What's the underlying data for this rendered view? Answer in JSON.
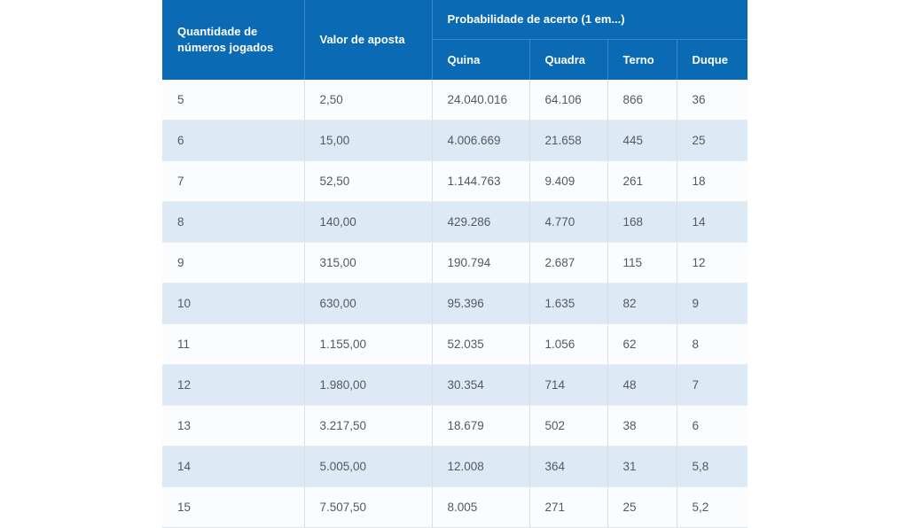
{
  "page": {
    "background": "#ffffff"
  },
  "chart_data": {
    "type": "table",
    "header": {
      "quantity_label": "Quantidade de números jogados",
      "bet_label": "Valor de aposta",
      "probability_group_label": "Probabilidade de acerto (1 em...)",
      "sub_columns": [
        "Quina",
        "Quadra",
        "Terno",
        "Duque"
      ]
    },
    "columns": [
      "Quantidade de números jogados",
      "Valor de aposta",
      "Quina",
      "Quadra",
      "Terno",
      "Duque"
    ],
    "rows": [
      [
        "5",
        "2,50",
        "24.040.016",
        "64.106",
        "866",
        "36"
      ],
      [
        "6",
        "15,00",
        "4.006.669",
        "21.658",
        "445",
        "25"
      ],
      [
        "7",
        "52,50",
        "1.144.763",
        "9.409",
        "261",
        "18"
      ],
      [
        "8",
        "140,00",
        "429.286",
        "4.770",
        "168",
        "14"
      ],
      [
        "9",
        "315,00",
        "190.794",
        "2.687",
        "115",
        "12"
      ],
      [
        "10",
        "630,00",
        "95.396",
        "1.635",
        "82",
        "9"
      ],
      [
        "11",
        "1.155,00",
        "52.035",
        "1.056",
        "62",
        "8"
      ],
      [
        "12",
        "1.980,00",
        "30.354",
        "714",
        "48",
        "7"
      ],
      [
        "13",
        "3.217,50",
        "18.679",
        "502",
        "38",
        "6"
      ],
      [
        "14",
        "5.005,00",
        "12.008",
        "364",
        "31",
        "5,8"
      ],
      [
        "15",
        "7.507,50",
        "8.005",
        "271",
        "25",
        "5,2"
      ]
    ]
  },
  "colors": {
    "header_bg": "#0b6ab4",
    "header_text": "#ffffff",
    "header_divider": "#3a88c5",
    "row_bg": "#fbfcfd",
    "row_alt_bg": "#ddeaf5",
    "body_divider": "#d8dfe5",
    "row_divider": "#e8edf2",
    "text": "#54595e"
  }
}
